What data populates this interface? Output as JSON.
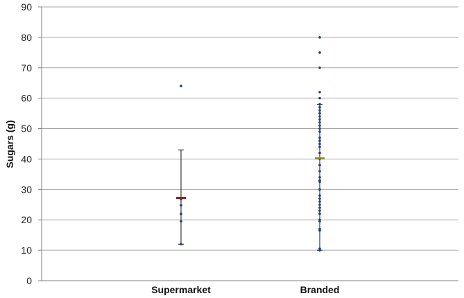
{
  "chart_data": {
    "type": "scatter",
    "title": "",
    "xlabel": "",
    "ylabel": "Sugars (g)",
    "ylim": [
      0,
      90
    ],
    "yticks": [
      0,
      10,
      20,
      30,
      40,
      50,
      60,
      70,
      80,
      90
    ],
    "grid": true,
    "categories": [
      "Supermarket",
      "Branded"
    ],
    "series": [
      {
        "category": "Supermarket",
        "points": [
          12,
          19.5,
          22,
          24.8,
          26.8,
          64
        ],
        "mean": 27.2,
        "error_low": 12,
        "error_high": 43,
        "mean_color": "#7b1d1d"
      },
      {
        "category": "Branded",
        "points": [
          10,
          10.5,
          16.5,
          17,
          19.5,
          20,
          22,
          23,
          24,
          25,
          26,
          27,
          28,
          30,
          32.5,
          33,
          34,
          36,
          38,
          40,
          42,
          44,
          45,
          46,
          47,
          49,
          50,
          51,
          52,
          53,
          54,
          55,
          56,
          57,
          58,
          60,
          62,
          70,
          75,
          80
        ],
        "mean": 40.2,
        "error_low": 10,
        "error_high": 58,
        "mean_color": "#8b8a2a"
      }
    ],
    "colors": {
      "point": "#1f3f7a",
      "errorbar": "#111111",
      "grid": "#a6a6a6",
      "axis": "#7f7f7f"
    }
  }
}
